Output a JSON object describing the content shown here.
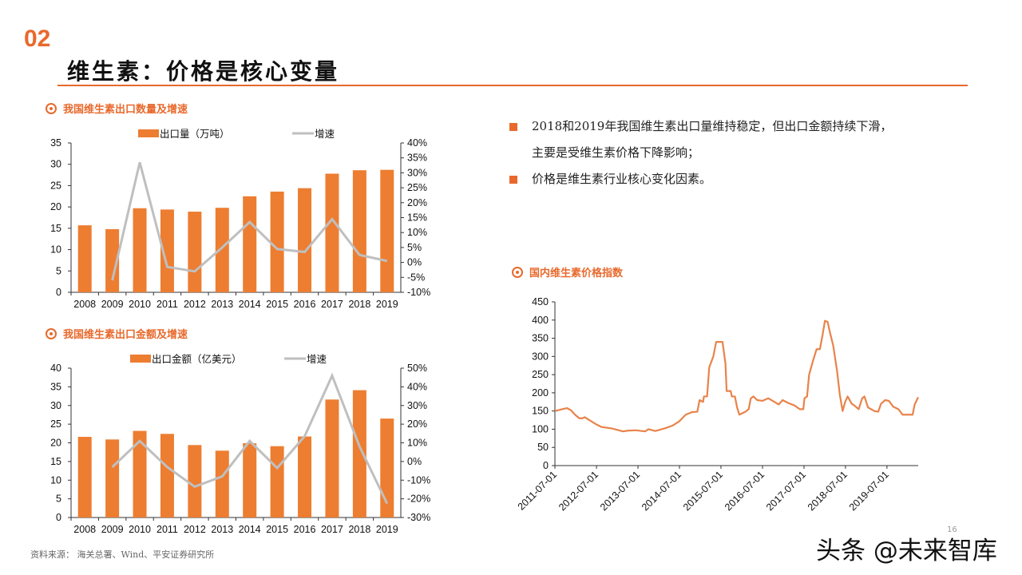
{
  "header": {
    "section_number": "02",
    "title": "维生素：价格是核心变量"
  },
  "sections": {
    "export_volume_title": "我国维生素出口数量及增速",
    "export_value_title": "我国维生素出口金额及增速",
    "price_index_title": "国内维生素价格指数"
  },
  "bullets": [
    {
      "line1": "2018和2019年我国维生素出口量维持稳定，但出口金额持续下滑，",
      "line2": "主要是受维生素价格下降影响；"
    },
    {
      "line1": "价格是维生素行业核心变化因素。",
      "line2": ""
    }
  ],
  "footer": {
    "source": "资料来源：  海关总署、Wind、平安证券研究所",
    "page_number": "16",
    "watermark": "头条 @未来智库"
  },
  "colors": {
    "accent": "#E8692C",
    "bar": "#ED7D31",
    "line": "#BFBFBF",
    "price_line": "#E8834A"
  },
  "chart_data": [
    {
      "type": "bar+line",
      "categories": [
        "2008",
        "2009",
        "2010",
        "2011",
        "2012",
        "2013",
        "2014",
        "2015",
        "2016",
        "2017",
        "2018",
        "2019"
      ],
      "series": [
        {
          "name": "出口量（万吨）",
          "type": "bar",
          "axis": "left",
          "values": [
            15.7,
            14.8,
            19.7,
            19.4,
            18.9,
            19.8,
            22.5,
            23.6,
            24.4,
            27.8,
            28.6,
            28.7
          ]
        },
        {
          "name": "增速",
          "type": "line",
          "axis": "right",
          "values": [
            null,
            -6,
            33.5,
            -1.5,
            -3,
            5,
            13.5,
            4.5,
            3.5,
            14.5,
            2.5,
            0.5
          ]
        }
      ],
      "ylim": [
        0,
        35
      ],
      "yticks": [
        "0",
        "5",
        "10",
        "15",
        "20",
        "25",
        "30",
        "35"
      ],
      "y2lim": [
        -10,
        40
      ],
      "y2ticks": [
        "-10%",
        "-5%",
        "0%",
        "5%",
        "10%",
        "15%",
        "20%",
        "25%",
        "30%",
        "35%",
        "40%"
      ],
      "legend": "top",
      "grid": false
    },
    {
      "type": "bar+line",
      "categories": [
        "2008",
        "2009",
        "2010",
        "2011",
        "2012",
        "2013",
        "2014",
        "2015",
        "2016",
        "2017",
        "2018",
        "2019"
      ],
      "series": [
        {
          "name": "出口金额（亿美元）",
          "type": "bar",
          "axis": "left",
          "values": [
            21.6,
            20.9,
            23.2,
            22.4,
            19.4,
            17.9,
            19.9,
            19.1,
            21.7,
            31.6,
            34.1,
            26.5
          ]
        },
        {
          "name": "增速",
          "type": "line",
          "axis": "right",
          "values": [
            null,
            -3,
            11,
            -3,
            -13.5,
            -8,
            11,
            -3.5,
            13.5,
            46,
            8,
            -22.5
          ]
        }
      ],
      "ylim": [
        0,
        40
      ],
      "yticks": [
        "0",
        "5",
        "10",
        "15",
        "20",
        "25",
        "30",
        "35",
        "40"
      ],
      "y2lim": [
        -30,
        50
      ],
      "y2ticks": [
        "-30%",
        "-20%",
        "-10%",
        "0%",
        "10%",
        "20%",
        "30%",
        "40%",
        "50%"
      ],
      "legend": "top",
      "grid": false
    },
    {
      "type": "line",
      "ylim": [
        0,
        450
      ],
      "yticks": [
        "0",
        "50",
        "100",
        "150",
        "200",
        "250",
        "300",
        "350",
        "400",
        "450"
      ],
      "xticks": [
        "2011-07-01",
        "2012-07-01",
        "2013-07-01",
        "2014-07-01",
        "2015-07-01",
        "2016-07-01",
        "2017-07-01",
        "2018-07-01",
        "2019-07-01"
      ],
      "xlim": [
        "2011-07-01",
        "2020-04-01"
      ],
      "grid": false,
      "points": [
        [
          "2011-07-01",
          150
        ],
        [
          "2011-09-01",
          155
        ],
        [
          "2011-10-15",
          158
        ],
        [
          "2011-11-20",
          152
        ],
        [
          "2011-12-25",
          140
        ],
        [
          "2012-02-01",
          130
        ],
        [
          "2012-03-01",
          130
        ],
        [
          "2012-03-20",
          133
        ],
        [
          "2012-05-15",
          122
        ],
        [
          "2012-07-01",
          113
        ],
        [
          "2012-08-15",
          106
        ],
        [
          "2012-11-15",
          102
        ],
        [
          "2013-02-20",
          94
        ],
        [
          "2013-04-01",
          96
        ],
        [
          "2013-06-15",
          97
        ],
        [
          "2013-09-01",
          94
        ],
        [
          "2013-10-01",
          100
        ],
        [
          "2013-12-01",
          95
        ],
        [
          "2014-03-01",
          103
        ],
        [
          "2014-05-01",
          110
        ],
        [
          "2014-07-01",
          122
        ],
        [
          "2014-08-25",
          140
        ],
        [
          "2014-10-20",
          147
        ],
        [
          "2014-12-05",
          148
        ],
        [
          "2014-12-25",
          180
        ],
        [
          "2015-01-25",
          175
        ],
        [
          "2015-02-01",
          190
        ],
        [
          "2015-03-01",
          190
        ],
        [
          "2015-03-20",
          270
        ],
        [
          "2015-04-25",
          300
        ],
        [
          "2015-05-20",
          340
        ],
        [
          "2015-07-15",
          340
        ],
        [
          "2015-08-10",
          280
        ],
        [
          "2015-08-20",
          205
        ],
        [
          "2015-09-25",
          205
        ],
        [
          "2015-10-05",
          190
        ],
        [
          "2015-11-01",
          190
        ],
        [
          "2015-11-20",
          160
        ],
        [
          "2015-12-10",
          140
        ],
        [
          "2016-02-01",
          148
        ],
        [
          "2016-03-01",
          155
        ],
        [
          "2016-03-20",
          185
        ],
        [
          "2016-04-12",
          190
        ],
        [
          "2016-05-15",
          180
        ],
        [
          "2016-07-01",
          178
        ],
        [
          "2016-08-20",
          185
        ],
        [
          "2016-10-15",
          175
        ],
        [
          "2016-11-20",
          168
        ],
        [
          "2016-12-25",
          180
        ],
        [
          "2017-02-12",
          172
        ],
        [
          "2017-04-10",
          165
        ],
        [
          "2017-05-25",
          155
        ],
        [
          "2017-06-25",
          155
        ],
        [
          "2017-07-05",
          185
        ],
        [
          "2017-07-28",
          190
        ],
        [
          "2017-08-15",
          250
        ],
        [
          "2017-09-20",
          290
        ],
        [
          "2017-10-20",
          320
        ],
        [
          "2017-11-18",
          320
        ],
        [
          "2017-12-12",
          360
        ],
        [
          "2018-01-01",
          398
        ],
        [
          "2018-01-25",
          395
        ],
        [
          "2018-02-15",
          365
        ],
        [
          "2018-03-15",
          330
        ],
        [
          "2018-04-18",
          260
        ],
        [
          "2018-05-12",
          195
        ],
        [
          "2018-06-06",
          150
        ],
        [
          "2018-06-28",
          175
        ],
        [
          "2018-07-20",
          190
        ],
        [
          "2018-08-25",
          170
        ],
        [
          "2018-09-18",
          165
        ],
        [
          "2018-10-25",
          155
        ],
        [
          "2018-11-25",
          185
        ],
        [
          "2018-12-15",
          190
        ],
        [
          "2019-01-15",
          160
        ],
        [
          "2019-03-12",
          150
        ],
        [
          "2019-04-15",
          148
        ],
        [
          "2019-05-10",
          170
        ],
        [
          "2019-06-15",
          180
        ],
        [
          "2019-07-18",
          178
        ],
        [
          "2019-08-25",
          162
        ],
        [
          "2019-10-10",
          155
        ],
        [
          "2019-11-15",
          140
        ],
        [
          "2020-02-12",
          140
        ],
        [
          "2020-03-01",
          168
        ],
        [
          "2020-04-01",
          188
        ]
      ]
    }
  ]
}
